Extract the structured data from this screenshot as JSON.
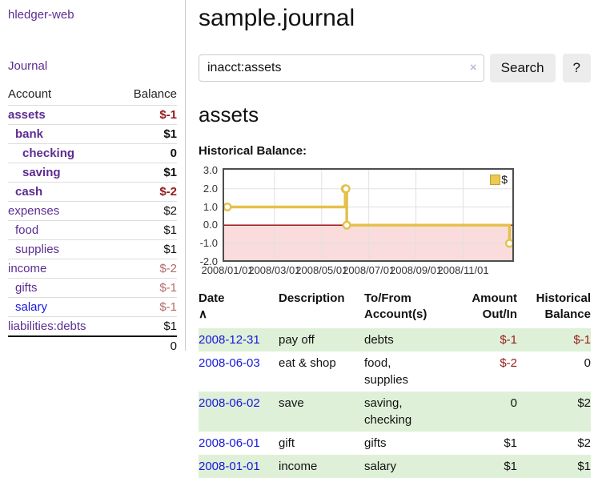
{
  "app": {
    "title": "hledger-web"
  },
  "colors": {
    "link_purple": "#5c2d91",
    "link_blue": "#1717dd",
    "negative_strong": "#941b1b",
    "negative_soft": "#b56a6a",
    "row_green": "#dff0d8",
    "chart_line": "#e3c14b",
    "chart_marker_fill": "#ffffff",
    "chart_negative_region": "#fadcdc",
    "zero_line": "#990000",
    "legend_fill": "#ecca50",
    "legend_border": "#c09f33",
    "gridline": "#e0e0e0"
  },
  "sidebar": {
    "nav_journal": "Journal",
    "accounts_table": {
      "headers": {
        "account": "Account",
        "balance": "Balance"
      },
      "rows": [
        {
          "name": "assets",
          "indent": 0,
          "bold": true,
          "balance": "$-1",
          "bclass": "neg-strong",
          "link": "purple"
        },
        {
          "name": "bank",
          "indent": 1,
          "bold": true,
          "balance": "$1",
          "bclass": "",
          "link": "purple"
        },
        {
          "name": "checking",
          "indent": 2,
          "bold": true,
          "balance": "0",
          "bclass": "",
          "link": "purple"
        },
        {
          "name": "saving",
          "indent": 2,
          "bold": true,
          "balance": "$1",
          "bclass": "",
          "link": "purple"
        },
        {
          "name": "cash",
          "indent": 1,
          "bold": true,
          "balance": "$-2",
          "bclass": "neg-strong",
          "link": "purple"
        },
        {
          "name": "expenses",
          "indent": 0,
          "bold": false,
          "balance": "$2",
          "bclass": "",
          "link": "purple"
        },
        {
          "name": "food",
          "indent": 1,
          "bold": false,
          "balance": "$1",
          "bclass": "",
          "link": "purple"
        },
        {
          "name": "supplies",
          "indent": 1,
          "bold": false,
          "balance": "$1",
          "bclass": "",
          "link": "purple"
        },
        {
          "name": "income",
          "indent": 0,
          "bold": false,
          "balance": "$-2",
          "bclass": "neg-soft",
          "link": "purple"
        },
        {
          "name": "gifts",
          "indent": 1,
          "bold": false,
          "balance": "$-1",
          "bclass": "neg-soft",
          "link": "purple"
        },
        {
          "name": "salary",
          "indent": 1,
          "bold": false,
          "balance": "$-1",
          "bclass": "neg-soft",
          "link": "blue"
        },
        {
          "name": "liabilities:debts",
          "indent": 0,
          "bold": false,
          "balance": "$1",
          "bclass": "",
          "link": "purple"
        }
      ],
      "total": "0"
    }
  },
  "main": {
    "title": "sample.journal",
    "search": {
      "value": "inacct:assets",
      "clear_icon": "×",
      "button_label": "Search",
      "help_label": "?"
    },
    "account_heading": "assets",
    "chart_heading": "Historical Balance:"
  },
  "chart_data": {
    "type": "line",
    "step": true,
    "title": "Historical Balance:",
    "legend": "$",
    "legend_position": "top-right",
    "grid": true,
    "ylim": [
      -2,
      3
    ],
    "y_ticks": [
      {
        "label": "3.0",
        "value": 3
      },
      {
        "label": "2.0",
        "value": 2
      },
      {
        "label": "1.0",
        "value": 1
      },
      {
        "label": "0.0",
        "value": 0
      },
      {
        "label": "-1.0",
        "value": -1
      },
      {
        "label": "-2.0",
        "value": -2
      }
    ],
    "x_ticks": [
      {
        "label": "2008/01/01",
        "month_index": 0
      },
      {
        "label": "2008/03/01",
        "month_index": 2
      },
      {
        "label": "2008/05/01",
        "month_index": 4
      },
      {
        "label": "2008/07/01",
        "month_index": 6
      },
      {
        "label": "2008/09/01",
        "month_index": 8
      },
      {
        "label": "2008/11/01",
        "month_index": 10
      }
    ],
    "series": [
      {
        "name": "$",
        "points": [
          {
            "date": "2008-01-01",
            "value": 1
          },
          {
            "date": "2008-06-01",
            "value": 2
          },
          {
            "date": "2008-06-02",
            "value": 2
          },
          {
            "date": "2008-06-03",
            "value": 0
          },
          {
            "date": "2008-12-31",
            "value": -1
          }
        ]
      }
    ]
  },
  "register": {
    "headers": {
      "date": "Date",
      "sort_icon": "∧",
      "description": "Description",
      "accounts_l1": "To/From",
      "accounts_l2": "Account(s)",
      "amount_l1": "Amount",
      "amount_l2": "Out/In",
      "balance_l1": "Historical",
      "balance_l2": "Balance"
    },
    "rows": [
      {
        "date": "2008-12-31",
        "description": "pay off",
        "accounts": "debts",
        "amount": "$-1",
        "amount_neg": true,
        "balance": "$-1",
        "balance_neg": true,
        "green": true
      },
      {
        "date": "2008-06-03",
        "description": "eat & shop",
        "accounts": "food, supplies",
        "amount": "$-2",
        "amount_neg": true,
        "balance": "0",
        "balance_neg": false,
        "green": false
      },
      {
        "date": "2008-06-02",
        "description": "save",
        "accounts": "saving, checking",
        "amount": "0",
        "amount_neg": false,
        "balance": "$2",
        "balance_neg": false,
        "green": true
      },
      {
        "date": "2008-06-01",
        "description": "gift",
        "accounts": "gifts",
        "amount": "$1",
        "amount_neg": false,
        "balance": "$2",
        "balance_neg": false,
        "green": false
      },
      {
        "date": "2008-01-01",
        "description": "income",
        "accounts": "salary",
        "amount": "$1",
        "amount_neg": false,
        "balance": "$1",
        "balance_neg": false,
        "green": true
      }
    ]
  }
}
